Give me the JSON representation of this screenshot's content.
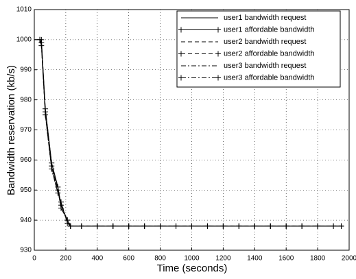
{
  "chart_data": {
    "type": "line",
    "xlabel": "Time (seconds)",
    "ylabel": "Bandwidth reservation (kb/s)",
    "x": [
      0,
      35,
      45,
      70,
      110,
      150,
      170,
      210,
      230,
      300,
      400,
      500,
      600,
      700,
      800,
      900,
      1000,
      1100,
      1200,
      1300,
      1400,
      1500,
      1600,
      1700,
      1800,
      1900,
      1950
    ],
    "series": [
      {
        "name": "user1 bandwidth request",
        "color": "#000000",
        "dash": "none",
        "marker": "none",
        "values": [
          1000,
          1000,
          1000,
          977,
          959,
          951,
          945,
          940,
          938,
          938,
          938,
          938,
          938,
          938,
          938,
          938,
          938,
          938,
          938,
          938,
          938,
          938,
          938,
          938,
          938,
          938,
          938
        ]
      },
      {
        "name": "user1 affordable bandwidth",
        "color": "#000000",
        "dash": "none",
        "marker": "+",
        "values": [
          null,
          1000,
          1000,
          977,
          959,
          951,
          945,
          940,
          938,
          938,
          938,
          938,
          938,
          938,
          938,
          938,
          938,
          938,
          938,
          938,
          938,
          938,
          938,
          938,
          938,
          938,
          938
        ]
      },
      {
        "name": "user2 bandwidth request",
        "color": "#000000",
        "dash": "6,4",
        "marker": "none",
        "values": [
          1000,
          1000,
          999,
          976,
          958,
          950,
          944,
          940,
          938,
          938,
          938,
          938,
          938,
          938,
          938,
          938,
          938,
          938,
          938,
          938,
          938,
          938,
          938,
          938,
          938,
          938,
          938
        ]
      },
      {
        "name": "user2 affordable bandwidth",
        "color": "#000000",
        "dash": "6,4",
        "marker": "+",
        "values": [
          null,
          1000,
          999,
          976,
          958,
          950,
          944,
          940,
          938,
          938,
          938,
          938,
          938,
          938,
          938,
          938,
          938,
          938,
          938,
          938,
          938,
          938,
          938,
          938,
          938,
          938,
          938
        ]
      },
      {
        "name": "user3 bandwidth request",
        "color": "#000000",
        "dash": "7,3,2,3",
        "marker": "none",
        "values": [
          1000,
          1000,
          998,
          975,
          957,
          949,
          946,
          939,
          938,
          938,
          938,
          938,
          938,
          938,
          938,
          938,
          938,
          938,
          938,
          938,
          938,
          938,
          938,
          938,
          938,
          938,
          938
        ]
      },
      {
        "name": "user3 affordable bandwidth",
        "color": "#000000",
        "dash": "7,3,2,3",
        "marker": "+",
        "values": [
          null,
          1000,
          998,
          975,
          957,
          949,
          946,
          939,
          938,
          938,
          938,
          938,
          938,
          938,
          938,
          938,
          938,
          938,
          938,
          938,
          938,
          938,
          938,
          938,
          938,
          938,
          938
        ]
      }
    ],
    "xlim": [
      0,
      2000
    ],
    "xticks": [
      0,
      200,
      400,
      600,
      800,
      1000,
      1200,
      1400,
      1600,
      1800,
      2000
    ],
    "ylim": [
      930,
      1010
    ],
    "yticks": [
      930,
      940,
      950,
      960,
      970,
      980,
      990,
      1000,
      1010
    ],
    "grid": true,
    "legend": "upper right"
  }
}
